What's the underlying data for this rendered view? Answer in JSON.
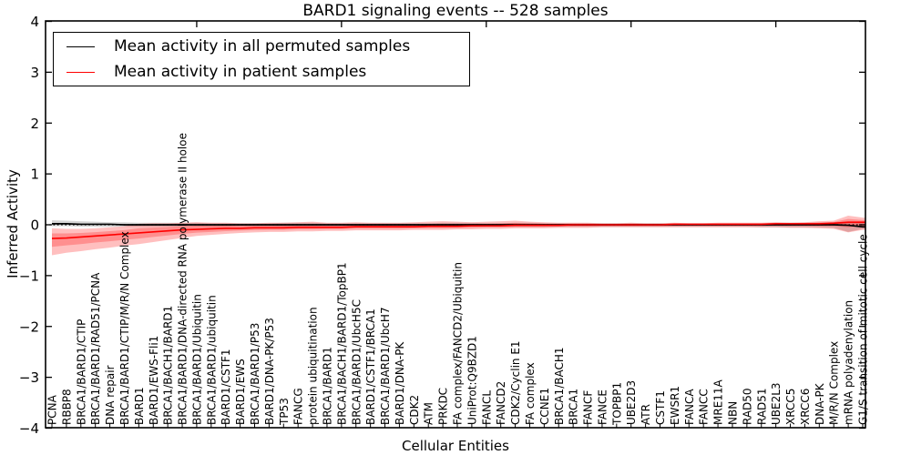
{
  "title": "BARD1 signaling events -- 528 samples",
  "legend": {
    "items": [
      {
        "label": "Mean activity in all permuted samples",
        "color": "#000000"
      },
      {
        "label": "Mean activity in patient samples",
        "color": "#ff0000"
      }
    ]
  },
  "chart_data": {
    "type": "line",
    "title": "BARD1 signaling events -- 528 samples",
    "xlabel": "Cellular Entities",
    "ylabel": "Inferred Activity",
    "ylim": [
      -4,
      4
    ],
    "ytick_labels": [
      "4",
      "3",
      "2",
      "1",
      "0",
      "−1",
      "−2",
      "−3",
      "−4"
    ],
    "ytick_values": [
      4,
      3,
      2,
      1,
      0,
      -1,
      -2,
      -3,
      -4
    ],
    "grid": false,
    "zero_line_style": "dotted",
    "legend_position": "upper left",
    "categories": [
      "PCNA",
      "RBBP8",
      "BRCA1/BARD1/CTIP",
      "BRCA1/BARD1/RAD51/PCNA",
      "DNA repair",
      "BRCA1/BARD1/CTIP/M/R/N Complex",
      "BARD1",
      "BARD1/EWS-Fli1",
      "BRCA1/BACH1/BARD1",
      "BRCA1/BARD1/DNA-directed RNA polymerase II holoe",
      "BRCA1/BARD1/Ubiquitin",
      "BRCA1/BARD1/ubiquitin",
      "BARD1/CSTF1",
      "BARD1/EWS",
      "BRCA1/BARD1/P53",
      "BARD1/DNA-PK/P53",
      "TP53",
      "FANCG",
      "protein ubiquitination",
      "BRCA1/BARD1",
      "BRCA1/BACH1/BARD1/TopBP1",
      "BRCA1/BARD1/UbcH5C",
      "BARD1/CSTF1/BRCA1",
      "BRCA1/BARD1/UbcH7",
      "BARD1/DNA-PK",
      "CDK2",
      "ATM",
      "PRKDC",
      "FA complex/FANCD2/Ubiquitin",
      "UniProt:Q9BZD1",
      "FANCL",
      "FANCD2",
      "CDK2/Cyclin E1",
      "FA complex",
      "CCNE1",
      "BRCA1/BACH1",
      "BRCA1",
      "FANCF",
      "FANCE",
      "TOPBP1",
      "UBE2D3",
      "ATR",
      "CSTF1",
      "EWSR1",
      "FANCA",
      "FANCC",
      "MRE11A",
      "NBN",
      "RAD50",
      "RAD51",
      "UBE2L3",
      "XRCC5",
      "XRCC6",
      "DNA-PK",
      "M/R/N Complex",
      "mRNA polyadenylation",
      "G1/S transition of mitotic cell cycle"
    ],
    "series": [
      {
        "name": "Mean activity in all permuted samples",
        "color": "#000000",
        "band_color": "#000000",
        "band_opacity": 0.16,
        "values": [
          0.02,
          0.02,
          0.01,
          0.01,
          0.01,
          0.0,
          0.0,
          0.0,
          0.0,
          0.0,
          0.0,
          0.0,
          0.0,
          0.0,
          0.0,
          0.0,
          0.0,
          0.0,
          0.0,
          0.0,
          0.0,
          0.0,
          0.0,
          0.0,
          0.0,
          0.0,
          0.0,
          0.0,
          0.0,
          0.0,
          0.0,
          0.0,
          0.0,
          0.0,
          0.0,
          0.0,
          0.0,
          0.0,
          0.0,
          0.0,
          0.0,
          0.0,
          0.0,
          0.0,
          0.0,
          0.0,
          0.0,
          0.0,
          0.0,
          0.0,
          0.0,
          0.0,
          0.0,
          0.0,
          0.0,
          -0.01,
          -0.04
        ],
        "band_upper": [
          0.09,
          0.08,
          0.07,
          0.06,
          0.05,
          0.05,
          0.04,
          0.04,
          0.04,
          0.04,
          0.04,
          0.03,
          0.03,
          0.03,
          0.03,
          0.03,
          0.04,
          0.04,
          0.04,
          0.03,
          0.03,
          0.03,
          0.03,
          0.03,
          0.03,
          0.03,
          0.03,
          0.04,
          0.04,
          0.04,
          0.03,
          0.03,
          0.04,
          0.04,
          0.03,
          0.03,
          0.03,
          0.03,
          0.03,
          0.03,
          0.03,
          0.03,
          0.03,
          0.03,
          0.03,
          0.03,
          0.03,
          0.03,
          0.03,
          0.03,
          0.04,
          0.04,
          0.04,
          0.04,
          0.05,
          0.06,
          0.05
        ],
        "band_lower": [
          -0.03,
          -0.03,
          -0.04,
          -0.04,
          -0.04,
          -0.04,
          -0.04,
          -0.04,
          -0.04,
          -0.04,
          -0.04,
          -0.04,
          -0.04,
          -0.03,
          -0.03,
          -0.03,
          -0.04,
          -0.04,
          -0.04,
          -0.04,
          -0.04,
          -0.04,
          -0.04,
          -0.04,
          -0.04,
          -0.04,
          -0.04,
          -0.04,
          -0.04,
          -0.04,
          -0.04,
          -0.04,
          -0.04,
          -0.04,
          -0.04,
          -0.04,
          -0.04,
          -0.04,
          -0.04,
          -0.04,
          -0.04,
          -0.04,
          -0.04,
          -0.04,
          -0.04,
          -0.04,
          -0.04,
          -0.04,
          -0.04,
          -0.05,
          -0.05,
          -0.05,
          -0.05,
          -0.05,
          -0.06,
          -0.14,
          -0.08
        ]
      },
      {
        "name": "Mean activity in patient samples",
        "color": "#ff0000",
        "band_color": "#ff0000",
        "band_opacity": 0.25,
        "values": [
          -0.27,
          -0.26,
          -0.24,
          -0.22,
          -0.2,
          -0.18,
          -0.16,
          -0.14,
          -0.12,
          -0.1,
          -0.09,
          -0.08,
          -0.07,
          -0.07,
          -0.06,
          -0.06,
          -0.06,
          -0.05,
          -0.05,
          -0.05,
          -0.05,
          -0.04,
          -0.04,
          -0.04,
          -0.04,
          -0.04,
          -0.03,
          -0.03,
          -0.03,
          -0.02,
          -0.02,
          -0.02,
          -0.01,
          -0.01,
          -0.01,
          -0.01,
          0.0,
          0.0,
          0.0,
          0.0,
          0.0,
          0.0,
          0.0,
          0.01,
          0.01,
          0.01,
          0.01,
          0.01,
          0.01,
          0.01,
          0.02,
          0.02,
          0.02,
          0.02,
          0.03,
          0.05,
          0.05
        ],
        "band_upper": [
          -0.07,
          -0.08,
          -0.08,
          -0.07,
          -0.05,
          -0.03,
          0.02,
          0.03,
          0.03,
          0.04,
          0.05,
          0.04,
          0.04,
          0.03,
          0.03,
          0.04,
          0.04,
          0.05,
          0.06,
          0.04,
          0.04,
          0.05,
          0.04,
          0.04,
          0.04,
          0.05,
          0.06,
          0.07,
          0.06,
          0.05,
          0.06,
          0.07,
          0.08,
          0.06,
          0.05,
          0.04,
          0.04,
          0.04,
          0.03,
          0.03,
          0.04,
          0.03,
          0.03,
          0.04,
          0.03,
          0.03,
          0.04,
          0.04,
          0.04,
          0.04,
          0.05,
          0.04,
          0.05,
          0.07,
          0.08,
          0.18,
          0.14
        ],
        "band_lower": [
          -0.6,
          -0.55,
          -0.52,
          -0.48,
          -0.45,
          -0.41,
          -0.38,
          -0.34,
          -0.3,
          -0.26,
          -0.22,
          -0.2,
          -0.18,
          -0.16,
          -0.15,
          -0.14,
          -0.14,
          -0.13,
          -0.13,
          -0.12,
          -0.12,
          -0.11,
          -0.11,
          -0.11,
          -0.11,
          -0.1,
          -0.1,
          -0.1,
          -0.09,
          -0.09,
          -0.08,
          -0.08,
          -0.07,
          -0.07,
          -0.07,
          -0.06,
          -0.06,
          -0.06,
          -0.05,
          -0.05,
          -0.05,
          -0.05,
          -0.05,
          -0.05,
          -0.05,
          -0.05,
          -0.05,
          -0.05,
          -0.05,
          -0.05,
          -0.05,
          -0.06,
          -0.06,
          -0.07,
          -0.08,
          -0.15,
          -0.1
        ]
      }
    ],
    "top_axis_tick_positions": [
      10,
      20,
      30,
      40,
      50
    ]
  }
}
